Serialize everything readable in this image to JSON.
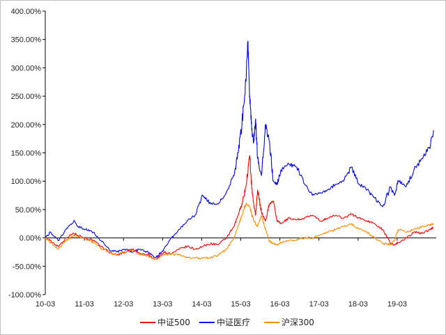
{
  "chart_data": {
    "type": "line",
    "title": "",
    "xlabel": "",
    "ylabel": "",
    "x_tick_labels": [
      "10-03",
      "11-03",
      "12-03",
      "13-03",
      "14-03",
      "15-03",
      "16-03",
      "17-03",
      "18-03",
      "19-03"
    ],
    "x_ticks": [
      2010.17,
      2011.17,
      2012.17,
      2013.17,
      2014.17,
      2015.17,
      2016.17,
      2017.17,
      2018.17,
      2019.17
    ],
    "xlim": [
      2010.17,
      2020.17
    ],
    "ylim": [
      -100,
      400
    ],
    "y_ticks": [
      -100,
      -50,
      0,
      50,
      100,
      150,
      200,
      250,
      300,
      350,
      400
    ],
    "y_tick_labels": [
      "-100.00%",
      "-50.00%",
      "0.00%",
      "50.00%",
      "100.00%",
      "150.00%",
      "200.00%",
      "250.00%",
      "300.00%",
      "350.00%",
      "400.00%"
    ],
    "grid": false,
    "legend_position": "bottom",
    "series": [
      {
        "name": "中证500",
        "color": "#ff0000",
        "x": [
          2010.17,
          2010.3,
          2010.5,
          2010.7,
          2010.9,
          2011.0,
          2011.2,
          2011.4,
          2011.6,
          2011.8,
          2012.0,
          2012.2,
          2012.4,
          2012.6,
          2012.8,
          2013.0,
          2013.1,
          2013.2,
          2013.4,
          2013.6,
          2013.8,
          2014.0,
          2014.2,
          2014.4,
          2014.6,
          2014.8,
          2015.0,
          2015.1,
          2015.2,
          2015.3,
          2015.4,
          2015.45,
          2015.5,
          2015.55,
          2015.6,
          2015.7,
          2015.8,
          2015.9,
          2016.0,
          2016.1,
          2016.2,
          2016.4,
          2016.6,
          2016.8,
          2017.0,
          2017.2,
          2017.4,
          2017.6,
          2017.8,
          2018.0,
          2018.2,
          2018.4,
          2018.6,
          2018.8,
          2019.0,
          2019.1,
          2019.2,
          2019.4,
          2019.6,
          2019.8,
          2020.0,
          2020.1
        ],
        "y": [
          0,
          -5,
          -15,
          0,
          8,
          5,
          0,
          -5,
          -15,
          -25,
          -30,
          -25,
          -20,
          -28,
          -30,
          -38,
          -32,
          -25,
          -28,
          -20,
          -15,
          -20,
          -15,
          -10,
          -12,
          0,
          20,
          40,
          60,
          90,
          145,
          90,
          60,
          40,
          85,
          45,
          30,
          60,
          65,
          30,
          25,
          35,
          32,
          35,
          40,
          30,
          35,
          40,
          35,
          42,
          35,
          30,
          25,
          15,
          -10,
          -12,
          -8,
          0,
          10,
          8,
          15,
          18
        ]
      },
      {
        "name": "中证医疗",
        "color": "#0000ff",
        "x": [
          2010.17,
          2010.3,
          2010.5,
          2010.7,
          2010.9,
          2011.0,
          2011.2,
          2011.4,
          2011.6,
          2011.8,
          2012.0,
          2012.2,
          2012.4,
          2012.6,
          2012.8,
          2013.0,
          2013.1,
          2013.2,
          2013.4,
          2013.6,
          2013.8,
          2014.0,
          2014.2,
          2014.4,
          2014.6,
          2014.8,
          2015.0,
          2015.1,
          2015.2,
          2015.3,
          2015.35,
          2015.4,
          2015.45,
          2015.5,
          2015.55,
          2015.6,
          2015.7,
          2015.8,
          2015.9,
          2016.0,
          2016.1,
          2016.2,
          2016.4,
          2016.6,
          2016.8,
          2017.0,
          2017.2,
          2017.4,
          2017.6,
          2017.8,
          2018.0,
          2018.2,
          2018.4,
          2018.6,
          2018.8,
          2019.0,
          2019.1,
          2019.2,
          2019.4,
          2019.6,
          2019.8,
          2020.0,
          2020.1
        ],
        "y": [
          0,
          10,
          -5,
          15,
          30,
          20,
          15,
          10,
          -5,
          -20,
          -25,
          -20,
          -25,
          -20,
          -25,
          -35,
          -28,
          -20,
          0,
          15,
          30,
          40,
          75,
          60,
          60,
          80,
          110,
          150,
          200,
          280,
          345,
          250,
          190,
          170,
          210,
          140,
          110,
          200,
          170,
          100,
          95,
          120,
          130,
          125,
          95,
          75,
          80,
          85,
          95,
          100,
          125,
          95,
          85,
          70,
          55,
          90,
          75,
          100,
          90,
          120,
          140,
          160,
          190
        ]
      },
      {
        "name": "沪深300",
        "color": "#ff8c00",
        "x": [
          2010.17,
          2010.3,
          2010.5,
          2010.7,
          2010.9,
          2011.0,
          2011.2,
          2011.4,
          2011.6,
          2011.8,
          2012.0,
          2012.2,
          2012.4,
          2012.6,
          2012.8,
          2013.0,
          2013.2,
          2013.4,
          2013.6,
          2013.8,
          2014.0,
          2014.2,
          2014.4,
          2014.6,
          2014.8,
          2015.0,
          2015.1,
          2015.2,
          2015.3,
          2015.4,
          2015.5,
          2015.6,
          2015.7,
          2015.8,
          2015.9,
          2016.0,
          2016.1,
          2016.2,
          2016.4,
          2016.6,
          2016.8,
          2017.0,
          2017.2,
          2017.4,
          2017.6,
          2017.8,
          2018.0,
          2018.2,
          2018.4,
          2018.6,
          2018.8,
          2019.0,
          2019.1,
          2019.2,
          2019.4,
          2019.6,
          2019.8,
          2020.0,
          2020.1
        ],
        "y": [
          0,
          -8,
          -20,
          -5,
          5,
          2,
          -2,
          -8,
          -18,
          -25,
          -30,
          -25,
          -22,
          -30,
          -32,
          -38,
          -30,
          -28,
          -30,
          -35,
          -35,
          -36,
          -35,
          -30,
          -20,
          0,
          20,
          40,
          60,
          55,
          30,
          20,
          40,
          15,
          -5,
          -10,
          -12,
          -8,
          -5,
          -3,
          0,
          0,
          5,
          10,
          15,
          20,
          25,
          15,
          10,
          0,
          -10,
          -12,
          -5,
          15,
          10,
          15,
          20,
          22,
          25
        ]
      }
    ]
  }
}
